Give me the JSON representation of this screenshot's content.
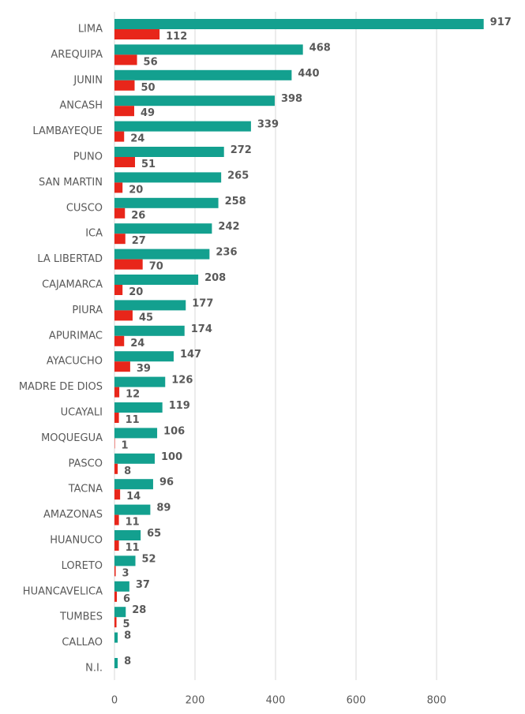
{
  "chart_data": {
    "type": "bar",
    "orientation": "horizontal",
    "categories": [
      "LIMA",
      "AREQUIPA",
      "JUNIN",
      "ANCASH",
      "LAMBAYEQUE",
      "PUNO",
      "SAN MARTIN",
      "CUSCO",
      "ICA",
      "LA LIBERTAD",
      "CAJAMARCA",
      "PIURA",
      "APURIMAC",
      "AYACUCHO",
      "MADRE DE DIOS",
      "UCAYALI",
      "MOQUEGUA",
      "PASCO",
      "TACNA",
      "AMAZONAS",
      "HUANUCO",
      "LORETO",
      "HUANCAVELICA",
      "TUMBES",
      "CALLAO",
      "N.I."
    ],
    "series": [
      {
        "color": "#13a08f",
        "values": [
          917,
          468,
          440,
          398,
          339,
          272,
          265,
          258,
          242,
          236,
          208,
          177,
          174,
          147,
          126,
          119,
          106,
          100,
          96,
          89,
          65,
          52,
          37,
          28,
          8,
          8
        ]
      },
      {
        "color": "#e8261a",
        "values": [
          112,
          56,
          50,
          49,
          24,
          51,
          20,
          26,
          27,
          70,
          20,
          45,
          24,
          39,
          12,
          11,
          1,
          8,
          14,
          11,
          11,
          3,
          6,
          5,
          null,
          null
        ]
      }
    ],
    "xlim": [
      0,
      1000
    ],
    "xticks": [
      0,
      200,
      400,
      600,
      800
    ],
    "grid": true
  }
}
